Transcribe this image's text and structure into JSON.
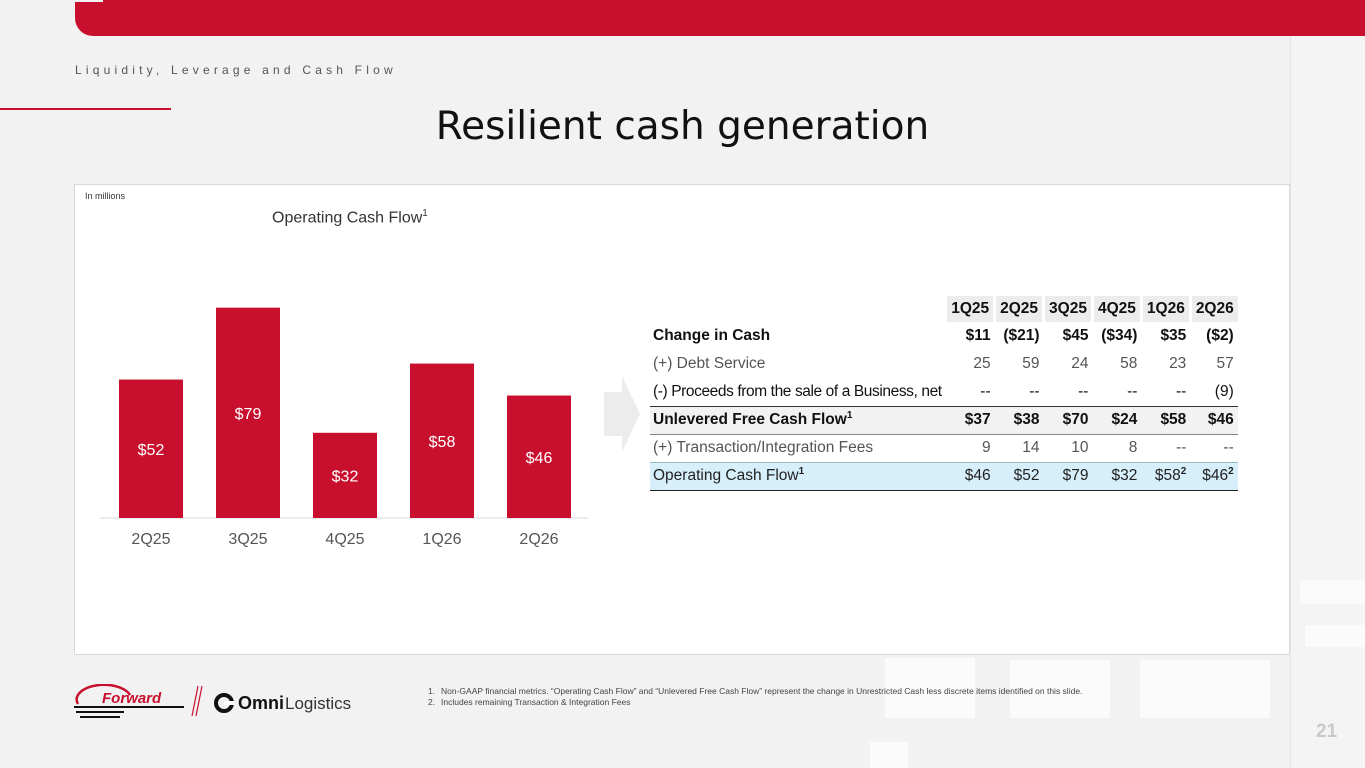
{
  "section": "Liquidity, Leverage and Cash Flow",
  "title": "Resilient cash generation",
  "units": "In millions",
  "chart_data": {
    "type": "bar",
    "title": "Operating Cash Flow",
    "title_footnote": "1",
    "categories": [
      "2Q25",
      "3Q25",
      "4Q25",
      "1Q26",
      "2Q26"
    ],
    "values": [
      52,
      79,
      32,
      58,
      46
    ],
    "data_labels": [
      "$52",
      "$79",
      "$32",
      "$58",
      "$46"
    ],
    "bar_color": "#c8102e",
    "ylim": [
      0,
      80
    ],
    "grid": false
  },
  "table": {
    "columns": [
      "1Q25",
      "2Q25",
      "3Q25",
      "4Q25",
      "1Q26",
      "2Q26"
    ],
    "rows": [
      {
        "label": "Change in Cash",
        "values": [
          "$11",
          "($21)",
          "$45",
          "($34)",
          "$35",
          "($2)"
        ]
      },
      {
        "label": "(+) Debt Service",
        "values": [
          "25",
          "59",
          "24",
          "58",
          "23",
          "57"
        ]
      },
      {
        "label": "(-) Proceeds from the sale of a Business, net",
        "values": [
          "--",
          "--",
          "--",
          "--",
          "--",
          "(9)"
        ]
      },
      {
        "label": "Unlevered Free Cash Flow",
        "sup": "1",
        "values": [
          "$37",
          "$38",
          "$70",
          "$24",
          "$58",
          "$46"
        ]
      },
      {
        "label": "(+) Transaction/Integration Fees",
        "values": [
          "9",
          "14",
          "10",
          "8",
          "--",
          "--"
        ]
      },
      {
        "label": "Operating Cash Flow",
        "sup": "1",
        "values": [
          "$46",
          "$52",
          "$79",
          "$32",
          "$58",
          "$46"
        ],
        "value_sups": [
          "",
          "",
          "",
          "",
          "2",
          "2"
        ]
      }
    ]
  },
  "footnotes": [
    {
      "num": "1.",
      "text": "Non-GAAP financial metrics. “Operating Cash Flow” and “Unlevered Free Cash Flow” represent the change in Unrestricted Cash less discrete items identified on this slide."
    },
    {
      "num": "2.",
      "text": "Includes remaining Transaction & Integration Fees"
    }
  ],
  "logos": {
    "forward": "Forward",
    "omni_bold": "Omni",
    "omni_light": "Logistics"
  },
  "page_number": "21",
  "colors": {
    "accent": "#c8102e",
    "highlight_row": "#d6effa"
  }
}
